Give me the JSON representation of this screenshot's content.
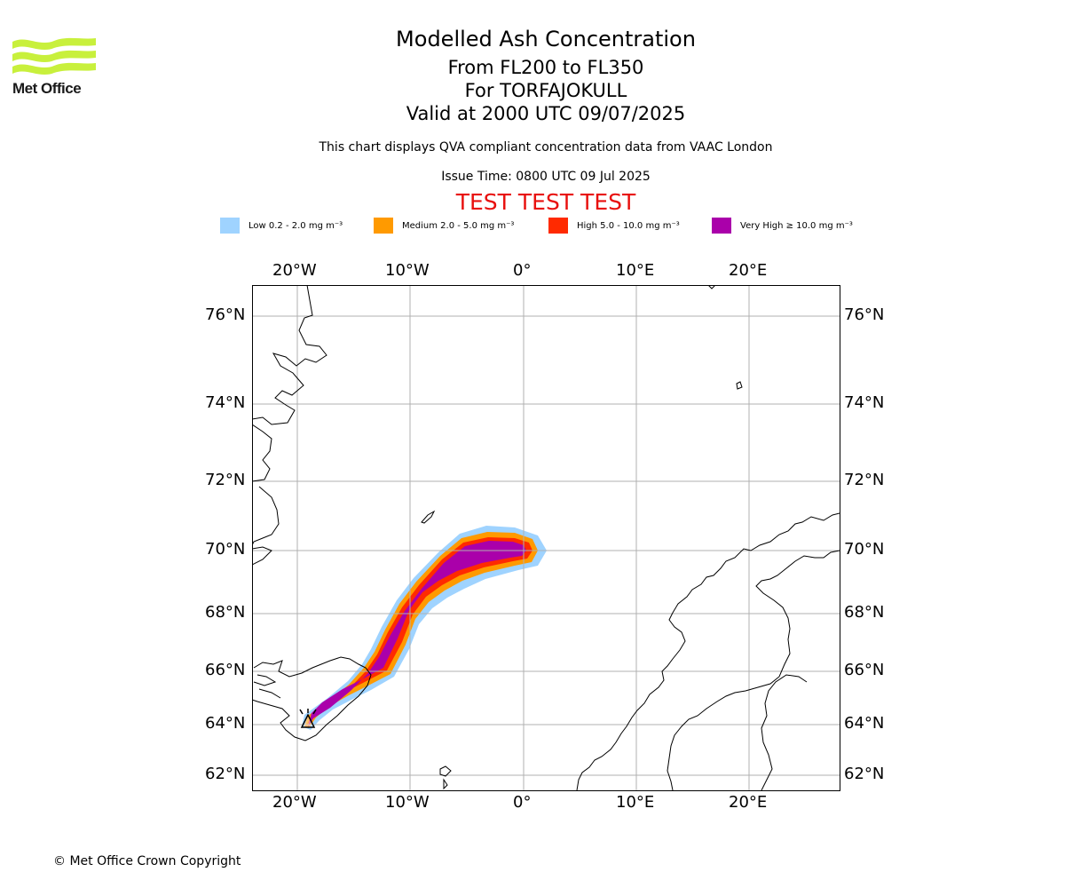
{
  "header": {
    "title": "Modelled Ash Concentration",
    "levels": "From FL200 to FL350",
    "volcano": "For TORFAJOKULL",
    "valid": "Valid at 2000 UTC 09/07/2025",
    "subtitle": "This chart displays QVA compliant concentration data from VAAC London",
    "issue_time": "Issue Time: 0800 UTC 09 Jul 2025",
    "test_banner": "TEST TEST TEST"
  },
  "logo": {
    "text": "Met Office",
    "color": "#c8f03c"
  },
  "legend": [
    {
      "label": "Low 0.2 - 2.0 mg m⁻³",
      "color": "#9fd3ff"
    },
    {
      "label": "Medium 2.0 - 5.0 mg m⁻³",
      "color": "#ff9a00"
    },
    {
      "label": "High 5.0 - 10.0 mg m⁻³",
      "color": "#ff2a00"
    },
    {
      "label": "Very High  ≥  10.0 mg m⁻³",
      "color": "#aa00aa"
    }
  ],
  "map": {
    "lon_labels": [
      "20°W",
      "10°W",
      "0°",
      "10°E",
      "20°E"
    ],
    "lat_labels": [
      "76°N",
      "74°N",
      "72°N",
      "70°N",
      "68°N",
      "66°N",
      "64°N",
      "62°N"
    ],
    "volcano_marker": "volcano-icon"
  },
  "footer": {
    "copyright": "© Met Office Crown Copyright"
  }
}
